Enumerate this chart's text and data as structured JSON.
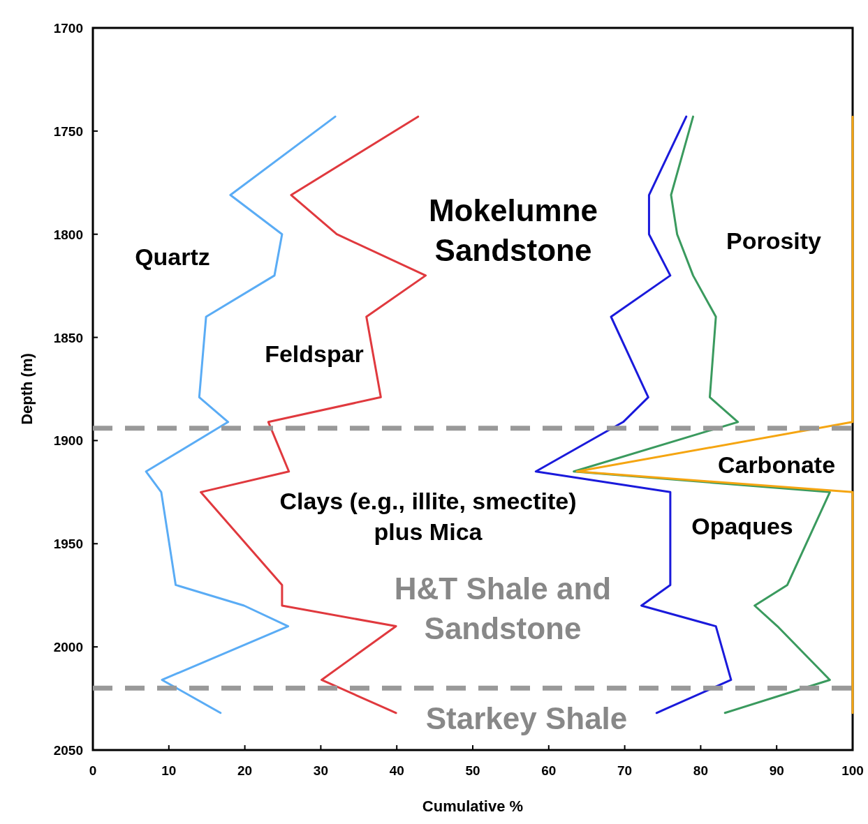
{
  "chart_data": {
    "type": "line",
    "xlabel": "Cumulative %",
    "ylabel": "Depth (m)",
    "xlim": [
      0,
      100
    ],
    "xticks": [
      0,
      10,
      20,
      30,
      40,
      50,
      60,
      70,
      80,
      90,
      100
    ],
    "ylim": [
      2050,
      1700
    ],
    "yticks": [
      1700,
      1750,
      1800,
      1850,
      1900,
      1950,
      2000,
      2050
    ],
    "grid": false,
    "marker": "none",
    "line_style": "solid",
    "series": [
      {
        "color": "#5aacf5",
        "x": [
          31.9,
          18.1,
          24.9,
          23.9,
          14.9,
          14,
          17.8,
          7,
          9,
          10.9,
          19.9,
          25.7,
          9.1,
          16.8
        ],
        "values": [
          1743,
          1781,
          1800,
          1820,
          1840,
          1879,
          1891,
          1915,
          1925,
          1970,
          1980,
          1990,
          2016,
          2032
        ]
      },
      {
        "color": "#e0393e",
        "x": [
          42.8,
          26.1,
          32.1,
          43.8,
          36,
          37.9,
          23.1,
          25.8,
          14.2,
          24.9,
          24.9,
          39.9,
          30.1,
          39.9
        ],
        "values": [
          1743,
          1781,
          1800,
          1820,
          1840,
          1879,
          1891,
          1915,
          1925,
          1970,
          1980,
          1990,
          2016,
          2032
        ]
      },
      {
        "color": "#1a1adb",
        "x": [
          78.1,
          73.2,
          73.2,
          76,
          68.2,
          73.1,
          69.8,
          58.3,
          76,
          76,
          72.2,
          82,
          84,
          74.2
        ],
        "values": [
          1743,
          1781,
          1800,
          1820,
          1840,
          1879,
          1891,
          1915,
          1925,
          1970,
          1980,
          1990,
          2016,
          2032
        ]
      },
      {
        "color": "#3a9a5e",
        "x": [
          79,
          76.1,
          76.9,
          79,
          82,
          81.2,
          84.9,
          63.3,
          97,
          91.4,
          87.1,
          90.1,
          97,
          83.2
        ],
        "values": [
          1743,
          1781,
          1800,
          1820,
          1840,
          1879,
          1891,
          1915,
          1925,
          1970,
          1980,
          1990,
          2016,
          2032
        ]
      },
      {
        "color": "#f5a511",
        "x": [
          100,
          100,
          63.7,
          100,
          100
        ],
        "values": [
          1743,
          1891,
          1915,
          1925,
          2032
        ]
      }
    ],
    "ref_lines": [
      {
        "axis": "y",
        "value": 1894,
        "color": "#999999",
        "line_style": "dashed"
      },
      {
        "axis": "y",
        "value": 2020,
        "color": "#999999",
        "line_style": "dashed"
      }
    ],
    "annotations": [
      "Quartz",
      "Feldspar",
      "Mokelumne\nSandstone",
      "Porosity",
      "Carbonate",
      "Clays (e.g., illite, smectite)\nplus Mica",
      "Opaques",
      "H&T Shale and\nSandstone",
      "Starkey Shale"
    ]
  }
}
